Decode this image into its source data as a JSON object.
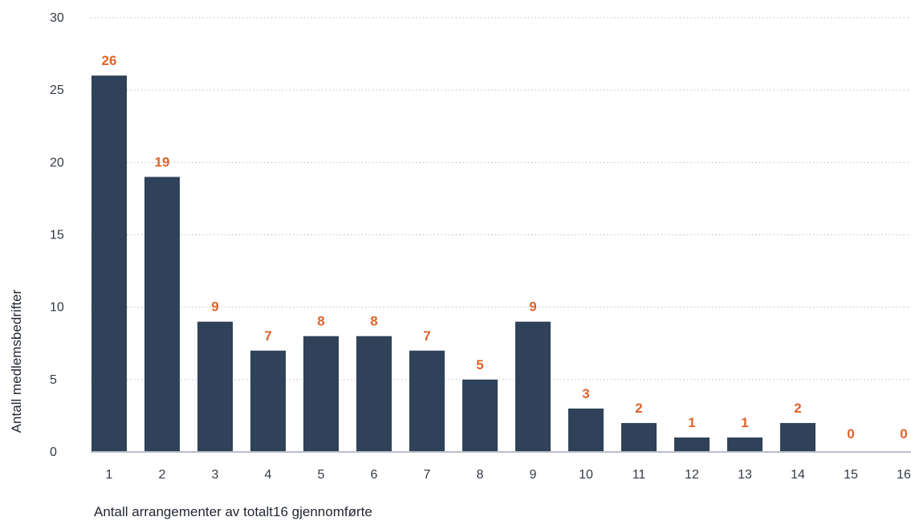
{
  "chart_data": {
    "type": "bar",
    "categories": [
      "1",
      "2",
      "3",
      "4",
      "5",
      "6",
      "7",
      "8",
      "9",
      "10",
      "11",
      "12",
      "13",
      "14",
      "15",
      "16"
    ],
    "values": [
      26,
      19,
      9,
      7,
      8,
      8,
      7,
      5,
      9,
      3,
      2,
      1,
      1,
      2,
      0,
      0
    ],
    "xlabel": "Antall arrangementer av totalt16 gjennomførte",
    "ylabel": "Antall medlemsbedrifter",
    "ylim": [
      0,
      30
    ],
    "yticks": [
      0,
      5,
      10,
      15,
      20,
      25,
      30
    ],
    "grid": true,
    "data_labels": true,
    "colors": {
      "bar": "#2f4259",
      "label": "#e0622a",
      "axis": "#b9bec6"
    }
  }
}
